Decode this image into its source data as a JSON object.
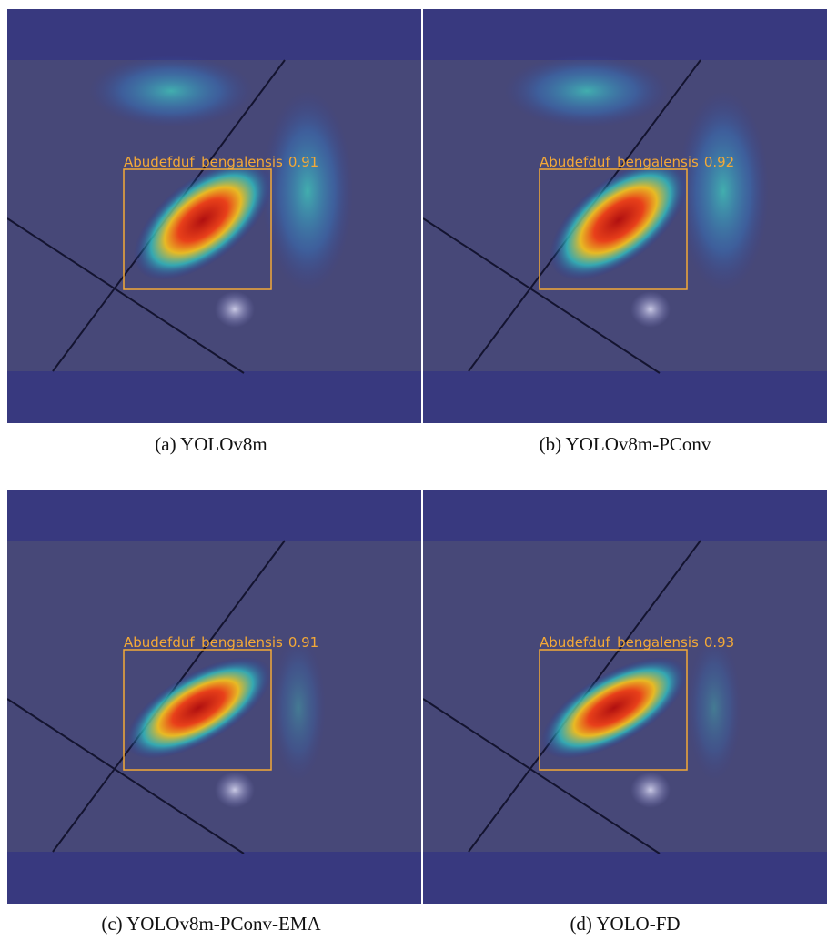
{
  "panels": [
    {
      "caption": "(a) YOLOv8m",
      "detection": {
        "label": "Abudefduf_bengalensis",
        "score": 0.91
      }
    },
    {
      "caption": "(b) YOLOv8m-PConv",
      "detection": {
        "label": "Abudefduf_bengalensis",
        "score": 0.92
      }
    },
    {
      "caption": "(c) YOLOv8m-PConv-EMA",
      "detection": {
        "label": "Abudefduf_bengalensis",
        "score": 0.91
      }
    },
    {
      "caption": "(d) YOLO-FD",
      "detection": {
        "label": "Abudefduf_bengalensis",
        "score": 0.93
      }
    }
  ]
}
